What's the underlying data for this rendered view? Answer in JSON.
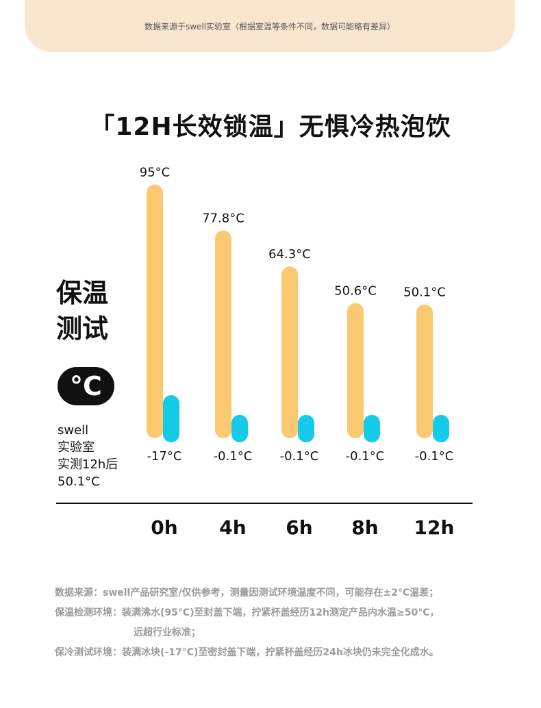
{
  "banner": {
    "text": "数据来源于swell实验室（根据室温等条件不同，数据可能略有差异）"
  },
  "title": "「12H长效锁温」无惧冷热泡饮",
  "side": {
    "heading_line1": "保温",
    "heading_line2": "测试",
    "badge": "°C",
    "note": [
      "swell",
      "实验室",
      "实测12h后",
      "50.1°C"
    ]
  },
  "chart_data": {
    "type": "bar",
    "categories": [
      "0h",
      "4h",
      "6h",
      "8h",
      "12h"
    ],
    "series": [
      {
        "values": [
          95,
          77.8,
          64.3,
          50.6,
          50.1
        ],
        "labels": [
          "95°C",
          "77.8°C",
          "64.3°C",
          "50.6°C",
          "50.1°C"
        ]
      },
      {
        "values": [
          -17,
          -0.1,
          -0.1,
          -0.1,
          -0.1
        ],
        "labels": [
          "-17°C",
          "-0.1°C",
          "-0.1°C",
          "-0.1°C",
          "-0.1°C"
        ]
      }
    ],
    "colors": {
      "hot": "#fbc96f",
      "cold": "#14cbe9",
      "axis": "#111111"
    }
  },
  "footer": {
    "lines": [
      "数据来源：swell产品研究室/仅供参考，测量因测试环境温度不同，可能存在±2°C温差；",
      "保温检测环境：装满沸水(95°C)至封盖下端，拧紧杯盖经历12h测定产品内水温≥50°C，",
      "远超行业标准；",
      "保冷测试环境：装满冰块(-17°C)至密封盖下端，拧紧杯盖经历24h冰块仍未完全化成水。"
    ]
  }
}
